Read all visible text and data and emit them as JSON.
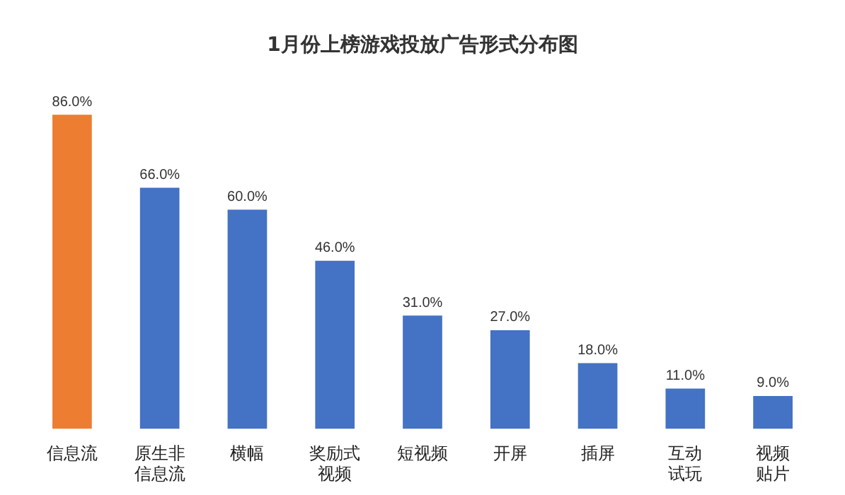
{
  "chart_data": {
    "type": "bar",
    "title": "1月份上榜游戏投放广告形式分布图",
    "categories": [
      "信息流",
      "原生非信息流",
      "横幅",
      "奖励式视频",
      "短视频",
      "开屏",
      "插屏",
      "互动试玩",
      "视频贴片"
    ],
    "values": [
      86,
      66,
      60,
      46,
      31,
      27,
      18,
      11,
      9
    ],
    "colors": [
      "#ed7d31",
      "#4472c4",
      "#4472c4",
      "#4472c4",
      "#4472c4",
      "#4472c4",
      "#4472c4",
      "#4472c4",
      "#4472c4"
    ],
    "value_labels": [
      "86.0%",
      "66.0%",
      "60.0%",
      "46.0%",
      "31.0%",
      "27.0%",
      "18.0%",
      "11.0%",
      "9.0%"
    ]
  }
}
